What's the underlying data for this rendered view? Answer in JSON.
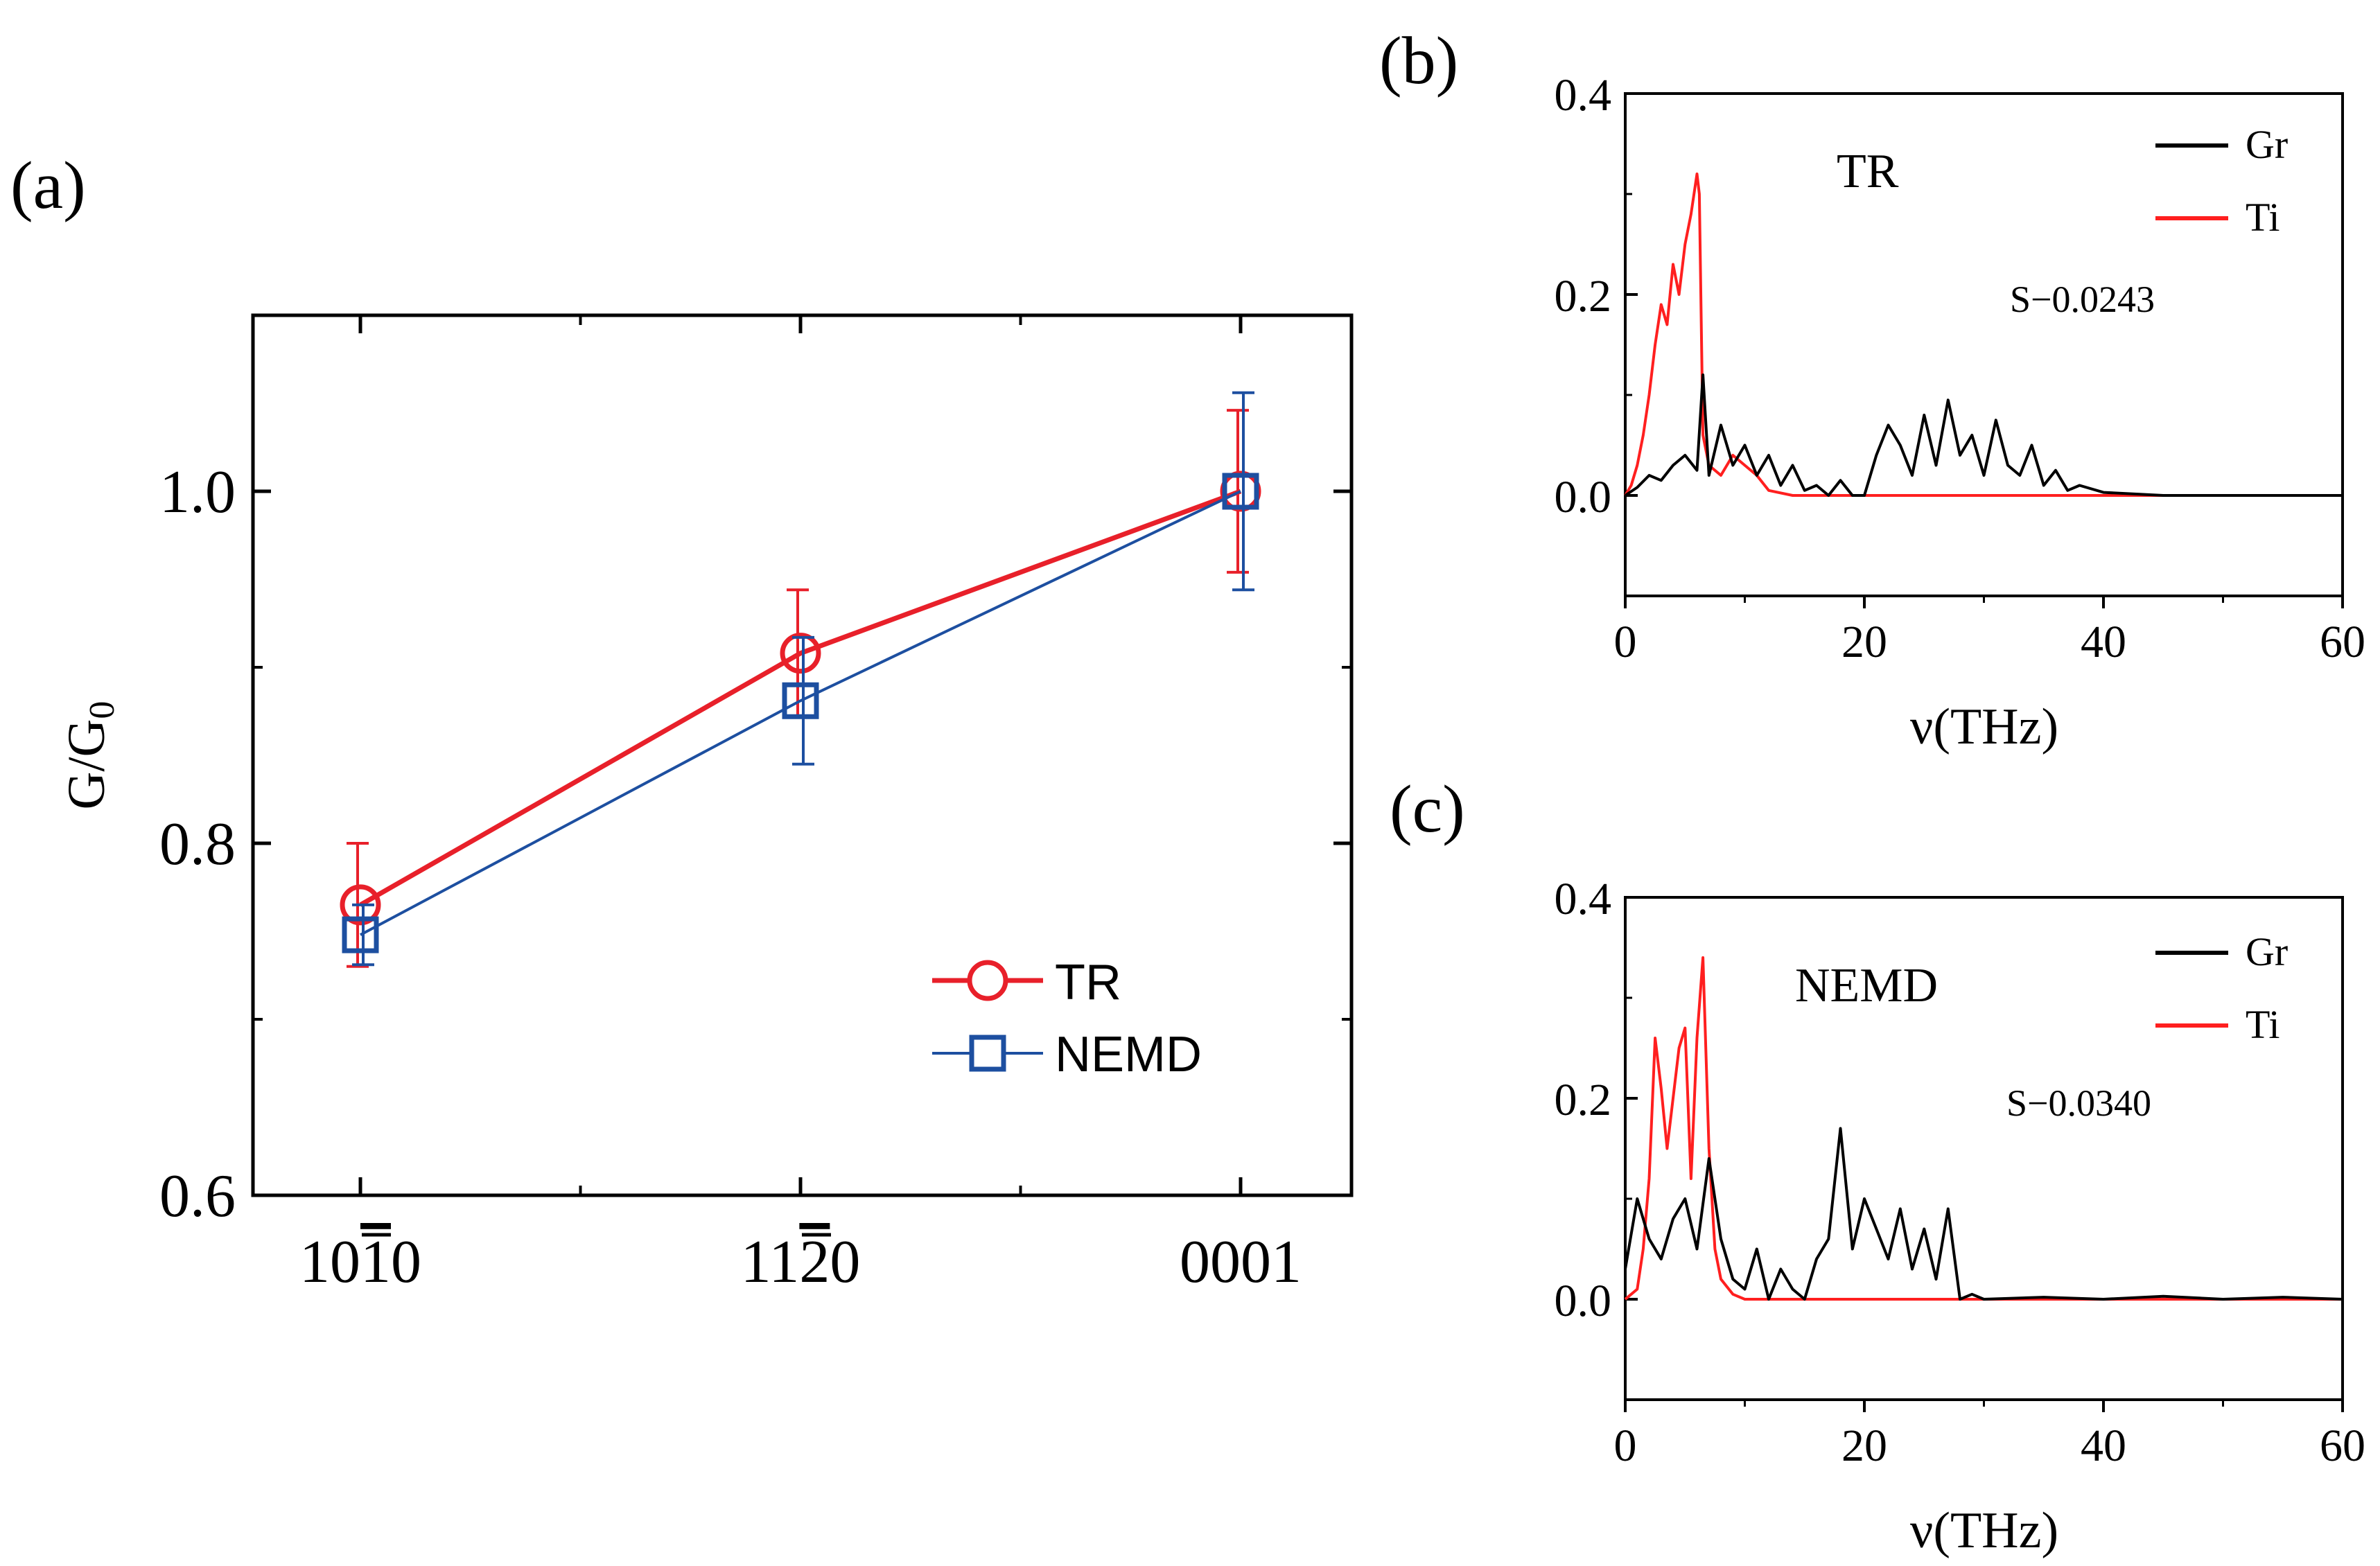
{
  "figure": {
    "panel_a_label": "(a)",
    "panel_b_label": "(b)",
    "panel_c_label": "(c)"
  },
  "colors": {
    "tr": "#e8202a",
    "nemd": "#1d4fa0",
    "gr": "#000000",
    "ti": "#ff1f1f",
    "axis": "#000000"
  },
  "chart_data": [
    {
      "id": "a",
      "type": "line",
      "title": "",
      "xlabel": "",
      "ylabel": "G/G",
      "ylabel_sub": "0",
      "categories": [
        {
          "pre": "10",
          "over": "1",
          "post": "0"
        },
        {
          "pre": "11",
          "over": "2",
          "post": "0"
        },
        {
          "pre": "",
          "over": "",
          "post": "0001"
        }
      ],
      "ylim": [
        0.6,
        1.1
      ],
      "yticks": [
        0.6,
        0.8,
        1.0
      ],
      "ytick_labels": [
        "0.6",
        "0.8",
        "1.0"
      ],
      "series": [
        {
          "name": "TR",
          "marker": "circle",
          "color_key": "tr",
          "values": [
            0.765,
            0.908,
            1.0
          ],
          "errors": [
            0.035,
            0.036,
            0.046
          ]
        },
        {
          "name": "NEMD",
          "marker": "square",
          "color_key": "nemd",
          "values": [
            0.748,
            0.881,
            1.0
          ],
          "errors": [
            0.017,
            0.036,
            0.056
          ]
        }
      ],
      "legend": "bottom-right"
    },
    {
      "id": "b",
      "type": "line",
      "annotation": "TR",
      "stat_text": "S−0.0243",
      "xlabel": "ν(THz)",
      "xlim": [
        0,
        60
      ],
      "xticks": [
        "0",
        "20",
        "40",
        "60"
      ],
      "ylim": [
        -0.1,
        0.4
      ],
      "yticks": [
        "0.0",
        "0.2",
        "0.4"
      ],
      "legend": "top-right",
      "series": [
        {
          "name": "Ti",
          "color_key": "ti",
          "x": [
            0,
            0.5,
            1,
            1.5,
            2,
            2.5,
            3,
            3.5,
            4,
            4.5,
            5,
            5.5,
            6,
            6.2,
            6.5,
            7,
            8,
            9,
            10,
            11,
            12,
            14,
            20,
            30,
            40,
            60
          ],
          "y": [
            0,
            0.01,
            0.03,
            0.06,
            0.1,
            0.15,
            0.19,
            0.17,
            0.23,
            0.2,
            0.25,
            0.28,
            0.32,
            0.3,
            0.06,
            0.03,
            0.02,
            0.04,
            0.03,
            0.02,
            0.005,
            0,
            0,
            0,
            0,
            0
          ]
        },
        {
          "name": "Gr",
          "color_key": "gr",
          "x": [
            0,
            1,
            2,
            3,
            4,
            5,
            6,
            6.5,
            7,
            8,
            9,
            10,
            11,
            12,
            13,
            14,
            15,
            16,
            17,
            18,
            19,
            20,
            21,
            22,
            23,
            24,
            25,
            26,
            27,
            28,
            29,
            30,
            31,
            32,
            33,
            34,
            35,
            36,
            37,
            38,
            40,
            45,
            50,
            60
          ],
          "y": [
            0,
            0.008,
            0.02,
            0.015,
            0.03,
            0.04,
            0.025,
            0.12,
            0.02,
            0.07,
            0.03,
            0.05,
            0.02,
            0.04,
            0.01,
            0.03,
            0.005,
            0.01,
            0.0,
            0.015,
            0.0,
            0.0,
            0.04,
            0.07,
            0.05,
            0.02,
            0.08,
            0.03,
            0.095,
            0.04,
            0.06,
            0.02,
            0.075,
            0.03,
            0.02,
            0.05,
            0.01,
            0.025,
            0.005,
            0.01,
            0.003,
            0.0,
            0.0,
            0.0
          ]
        }
      ]
    },
    {
      "id": "c",
      "type": "line",
      "annotation": "NEMD",
      "stat_text": "S−0.0340",
      "xlabel": "ν(THz)",
      "xlim": [
        0,
        60
      ],
      "xticks": [
        "0",
        "20",
        "40",
        "60"
      ],
      "ylim": [
        -0.1,
        0.4
      ],
      "yticks": [
        "0.0",
        "0.2",
        "0.4"
      ],
      "legend": "top-right",
      "series": [
        {
          "name": "Ti",
          "color_key": "ti",
          "x": [
            0,
            0.5,
            1,
            1.5,
            2,
            2.5,
            3,
            3.5,
            4,
            4.5,
            5,
            5.5,
            6,
            6.5,
            7,
            7.5,
            8,
            9,
            10,
            11,
            12,
            20,
            30,
            40,
            60
          ],
          "y": [
            0,
            0.005,
            0.01,
            0.05,
            0.12,
            0.26,
            0.21,
            0.15,
            0.2,
            0.25,
            0.27,
            0.12,
            0.26,
            0.34,
            0.15,
            0.05,
            0.02,
            0.005,
            0.0,
            0.0,
            0.0,
            0.0,
            0.0,
            0.0,
            0.0
          ]
        },
        {
          "name": "Gr",
          "color_key": "gr",
          "x": [
            0,
            1,
            2,
            3,
            4,
            5,
            6,
            7,
            8,
            9,
            10,
            11,
            12,
            13,
            14,
            15,
            16,
            17,
            18,
            19,
            20,
            21,
            22,
            23,
            24,
            25,
            26,
            27,
            28,
            29,
            30,
            35,
            40,
            45,
            50,
            55,
            60
          ],
          "y": [
            0.03,
            0.1,
            0.06,
            0.04,
            0.08,
            0.1,
            0.05,
            0.14,
            0.06,
            0.02,
            0.01,
            0.05,
            0.0,
            0.03,
            0.01,
            0.0,
            0.04,
            0.06,
            0.17,
            0.05,
            0.1,
            0.07,
            0.04,
            0.09,
            0.03,
            0.07,
            0.02,
            0.09,
            0.0,
            0.005,
            0.0,
            0.002,
            0.0,
            0.003,
            0.0,
            0.002,
            0.0
          ]
        }
      ]
    }
  ]
}
